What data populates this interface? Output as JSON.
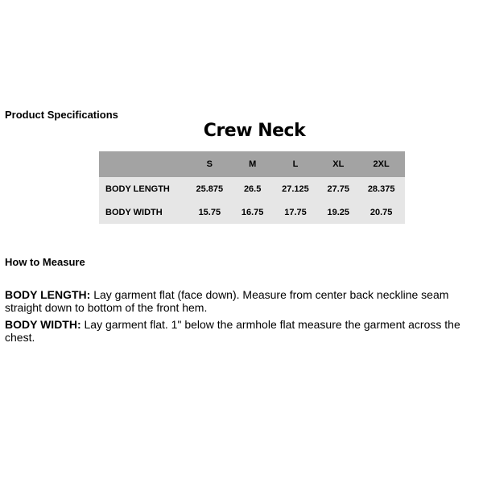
{
  "heading": "Product Specifications",
  "title": "Crew Neck",
  "table": {
    "headers": [
      "",
      "S",
      "M",
      "L",
      "XL",
      "2XL"
    ],
    "rows": [
      {
        "label": "BODY LENGTH",
        "values": [
          "25.875",
          "26.5",
          "27.125",
          "27.75",
          "28.375"
        ]
      },
      {
        "label": "BODY WIDTH",
        "values": [
          "15.75",
          "16.75",
          "17.75",
          "19.25",
          "20.75"
        ]
      }
    ]
  },
  "how_to": {
    "heading": "How to Measure",
    "items": [
      {
        "term": "BODY LENGTH:",
        "text": " Lay garment flat (face down). Measure from center back neckline seam straight down to bottom of the front hem."
      },
      {
        "term": "BODY WIDTH:",
        "text": " Lay garment flat. 1\" below the armhole flat measure the garment across the chest."
      }
    ]
  },
  "colors": {
    "header_bg": "#a3a3a3",
    "body_bg": "#e6e6e6"
  }
}
